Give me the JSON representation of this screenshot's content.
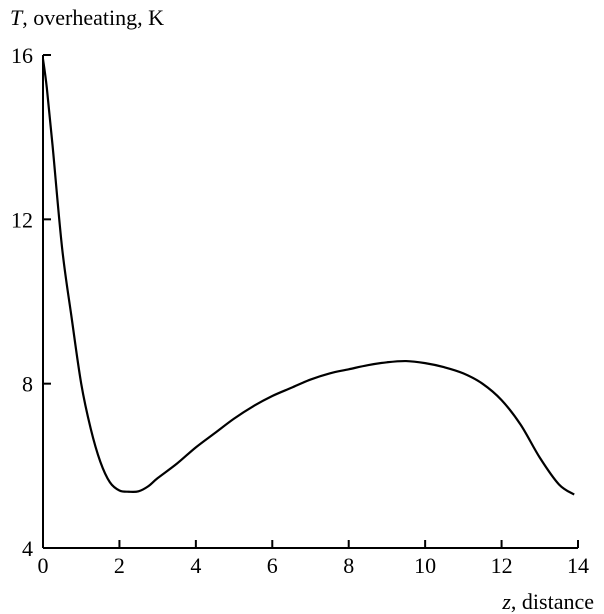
{
  "chart_data": {
    "type": "line",
    "ylabel": {
      "var": "T",
      "rest": ", overheating, K"
    },
    "xlabel": {
      "var": "z",
      "rest": ", distance"
    },
    "xlim": [
      0,
      14
    ],
    "ylim": [
      4,
      16
    ],
    "xticks": [
      0,
      2,
      4,
      6,
      8,
      10,
      12,
      14
    ],
    "yticks": [
      4,
      8,
      12,
      16
    ],
    "grid": false,
    "legend": "none",
    "series": [
      {
        "x": [
          0,
          0.1,
          0.25,
          0.5,
          0.75,
          1.0,
          1.25,
          1.5,
          1.75,
          2.0,
          2.25,
          2.5,
          2.75,
          3.0,
          3.5,
          4.0,
          4.5,
          5.0,
          5.5,
          6.0,
          6.5,
          7.0,
          7.5,
          8.0,
          8.5,
          9.0,
          9.5,
          10.0,
          10.5,
          11.0,
          11.5,
          12.0,
          12.5,
          13.0,
          13.5,
          13.9
        ],
        "values": [
          15.9,
          15.2,
          13.8,
          11.3,
          9.6,
          8.0,
          6.9,
          6.1,
          5.6,
          5.4,
          5.37,
          5.38,
          5.5,
          5.7,
          6.05,
          6.45,
          6.8,
          7.15,
          7.45,
          7.7,
          7.9,
          8.1,
          8.25,
          8.35,
          8.45,
          8.52,
          8.55,
          8.5,
          8.4,
          8.25,
          8.0,
          7.6,
          7.0,
          6.2,
          5.55,
          5.3
        ]
      }
    ]
  }
}
